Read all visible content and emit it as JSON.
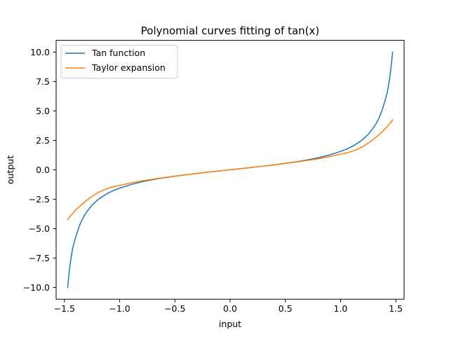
{
  "chart_data": {
    "type": "line",
    "title": "Polynomial curves fitting of tan(x)",
    "xlabel": "input",
    "ylabel": "output",
    "xlim": [
      -1.575,
      1.575
    ],
    "ylim": [
      -11.0,
      11.0
    ],
    "xticks": [
      -1.5,
      -1.0,
      -0.5,
      0.0,
      0.5,
      1.0,
      1.5
    ],
    "xtick_labels": [
      "−1.5",
      "−1.0",
      "−0.5",
      "0.0",
      "0.5",
      "1.0",
      "1.5"
    ],
    "yticks": [
      -10.0,
      -7.5,
      -5.0,
      -2.5,
      0.0,
      2.5,
      5.0,
      7.5,
      10.0
    ],
    "ytick_labels": [
      "−10.0",
      "−7.5",
      "−5.0",
      "−2.5",
      "0.0",
      "2.5",
      "5.0",
      "7.5",
      "10.0"
    ],
    "legend_position": "top-left",
    "series": [
      {
        "name": "Tan function",
        "color": "#1f77b4",
        "x": [
          -1.4711,
          -1.46,
          -1.45,
          -1.44,
          -1.43,
          -1.42,
          -1.4,
          -1.38,
          -1.36,
          -1.34,
          -1.32,
          -1.3,
          -1.25,
          -1.2,
          -1.15,
          -1.1,
          -1.05,
          -1.0,
          -0.9,
          -0.8,
          -0.7,
          -0.6,
          -0.5,
          -0.4,
          -0.3,
          -0.2,
          -0.1,
          0.0,
          0.1,
          0.2,
          0.3,
          0.4,
          0.5,
          0.6,
          0.7,
          0.8,
          0.9,
          1.0,
          1.05,
          1.1,
          1.15,
          1.2,
          1.25,
          1.3,
          1.32,
          1.34,
          1.36,
          1.38,
          1.4,
          1.42,
          1.43,
          1.44,
          1.45,
          1.46,
          1.4711
        ],
        "y": [
          -10.0,
          -8.99,
          -8.17,
          -7.5,
          -6.94,
          -6.46,
          -5.8,
          -5.18,
          -4.67,
          -4.25,
          -3.9,
          -3.6,
          -3.01,
          -2.57,
          -2.24,
          -1.96,
          -1.74,
          -1.56,
          -1.26,
          -1.03,
          -0.84,
          -0.68,
          -0.55,
          -0.42,
          -0.31,
          -0.2,
          -0.1,
          0.0,
          0.1,
          0.2,
          0.31,
          0.42,
          0.55,
          0.68,
          0.84,
          1.03,
          1.26,
          1.56,
          1.74,
          1.96,
          2.24,
          2.57,
          3.01,
          3.6,
          3.9,
          4.25,
          4.67,
          5.18,
          5.8,
          6.46,
          6.94,
          7.5,
          8.17,
          8.99,
          10.0
        ]
      },
      {
        "name": "Taylor expansion",
        "color": "#ff7f0e",
        "x": [
          -1.4711,
          -1.45,
          -1.4,
          -1.35,
          -1.3,
          -1.25,
          -1.2,
          -1.15,
          -1.1,
          -1.05,
          -1.0,
          -0.9,
          -0.8,
          -0.7,
          -0.6,
          -0.5,
          -0.4,
          -0.3,
          -0.2,
          -0.1,
          0.0,
          0.1,
          0.2,
          0.3,
          0.4,
          0.5,
          0.6,
          0.7,
          0.8,
          0.9,
          1.0,
          1.05,
          1.1,
          1.15,
          1.2,
          1.25,
          1.3,
          1.35,
          1.4,
          1.45,
          1.4711
        ],
        "y": [
          -4.25,
          -3.97,
          -3.45,
          -3.0,
          -2.61,
          -2.26,
          -1.96,
          -1.74,
          -1.56,
          -1.42,
          -1.33,
          -1.12,
          -0.94,
          -0.8,
          -0.66,
          -0.54,
          -0.42,
          -0.31,
          -0.2,
          -0.1,
          0.0,
          0.1,
          0.2,
          0.31,
          0.42,
          0.54,
          0.66,
          0.8,
          0.94,
          1.12,
          1.33,
          1.42,
          1.56,
          1.74,
          1.96,
          2.26,
          2.61,
          3.0,
          3.45,
          3.97,
          4.25
        ]
      }
    ]
  }
}
